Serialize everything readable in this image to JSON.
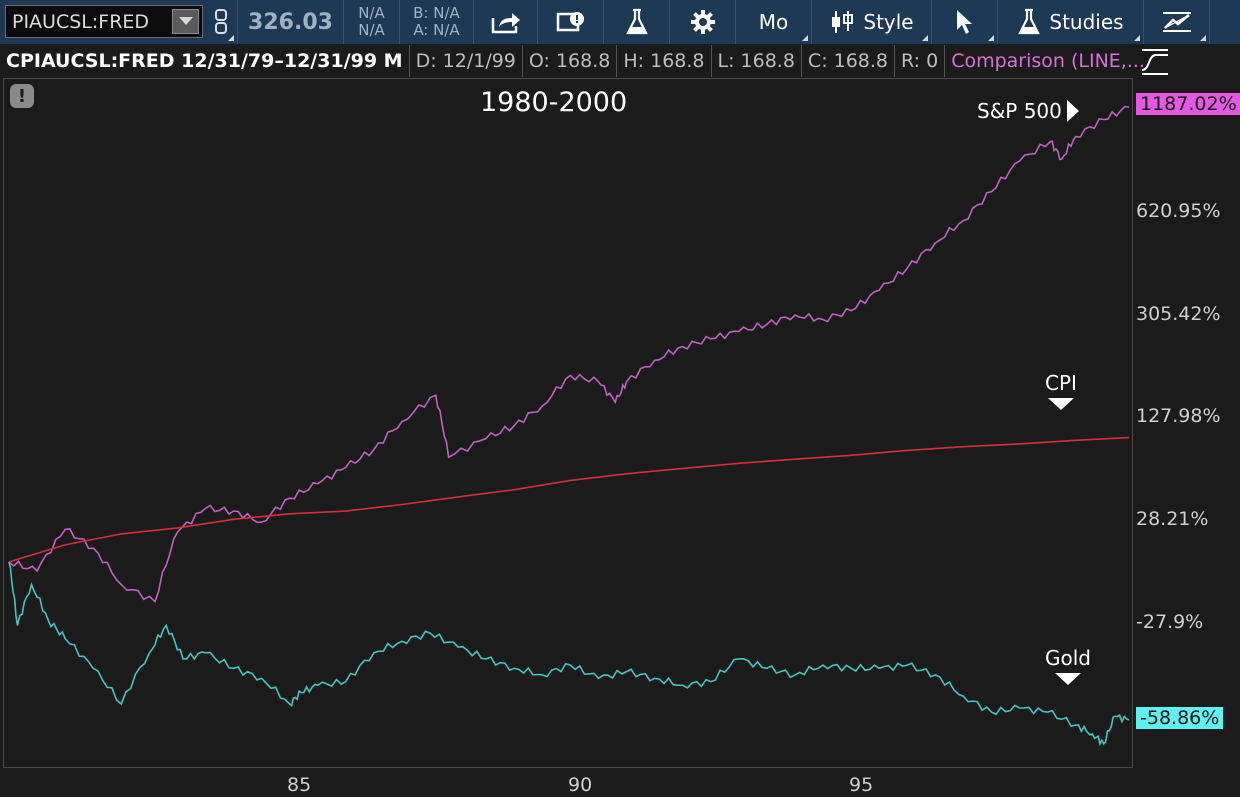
{
  "toolbar": {
    "symbol": "PIAUCSL:FRED",
    "price": "326.03",
    "na_top": "N/A",
    "na_bottom": "N/A",
    "bid": "B: N/A",
    "ask": "A: N/A",
    "interval_label": "Mo",
    "style_label": "Style",
    "studies_label": "Studies",
    "icons": [
      "link-icon",
      "share-icon",
      "message-icon",
      "flask-icon",
      "gear-icon",
      "candlestick-icon",
      "cursor-icon",
      "studies-flask-icon",
      "drawing-icon"
    ]
  },
  "header": {
    "title": "CPIAUCSL:FRED 12/31/79–12/31/99 M",
    "date": "D: 12/1/99",
    "open": "O: 168.8",
    "high": "H: 168.8",
    "low": "L: 168.8",
    "close": "C: 168.8",
    "range": "R: 0",
    "comparison": "Comparison (LINE,..."
  },
  "chart_data": {
    "type": "line",
    "title": "1980-2000",
    "x_ticks": [
      "85",
      "90",
      "95"
    ],
    "y_scale": "log",
    "y_ticks": [
      "620.95%",
      "305.42%",
      "127.98%",
      "28.21%",
      "-27.9%"
    ],
    "series": [
      {
        "name": "S&P 500",
        "color": "#c25ec4",
        "last_value_label": "1187.02%",
        "badge_color": "#e458e4",
        "x": [
          1980.0,
          1980.5,
          1981.0,
          1981.5,
          1982.0,
          1982.6,
          1983.0,
          1983.5,
          1984.0,
          1984.5,
          1985.0,
          1985.5,
          1986.0,
          1986.5,
          1987.0,
          1987.6,
          1987.83,
          1988.5,
          1989.0,
          1989.5,
          1990.0,
          1990.5,
          1990.8,
          1991.0,
          1991.5,
          1992.0,
          1992.5,
          1993.0,
          1993.5,
          1994.0,
          1994.5,
          1995.0,
          1995.5,
          1996.0,
          1996.5,
          1997.0,
          1997.5,
          1998.0,
          1998.55,
          1998.75,
          1999.0,
          1999.5,
          1999.95
        ],
        "values": [
          0,
          -5,
          20,
          8,
          -12,
          -20,
          18,
          35,
          33,
          25,
          43,
          55,
          70,
          88,
          120,
          155,
          80,
          100,
          115,
          140,
          185,
          175,
          145,
          175,
          210,
          235,
          250,
          265,
          280,
          300,
          290,
          310,
          360,
          420,
          500,
          580,
          700,
          850,
          960,
          860,
          990,
          1100,
          1187
        ]
      },
      {
        "name": "CPI",
        "color": "#d5303a",
        "x": [
          1980.0,
          1981.0,
          1982.0,
          1983.0,
          1984.0,
          1985.0,
          1986.0,
          1987.0,
          1988.0,
          1989.0,
          1990.0,
          1991.0,
          1992.0,
          1993.0,
          1994.0,
          1995.0,
          1996.0,
          1997.0,
          1998.0,
          1999.0,
          1999.95
        ],
        "values": [
          0,
          10,
          17,
          21,
          27,
          31,
          33,
          38,
          44,
          50,
          58,
          64,
          69,
          74,
          78,
          82,
          87,
          91,
          94,
          98,
          101
        ]
      },
      {
        "name": "Gold",
        "color": "#43c4c4",
        "last_value_label": "-58.86%",
        "badge_color": "#5ef3f3",
        "x": [
          1980.0,
          1980.15,
          1980.4,
          1980.7,
          1981.0,
          1981.5,
          1982.0,
          1982.5,
          1982.8,
          1983.1,
          1983.5,
          1984.0,
          1984.5,
          1985.0,
          1985.2,
          1985.5,
          1986.0,
          1986.5,
          1987.0,
          1987.5,
          1988.0,
          1988.5,
          1989.0,
          1989.5,
          1990.0,
          1990.5,
          1991.0,
          1991.5,
          1992.0,
          1992.5,
          1993.0,
          1993.5,
          1994.0,
          1994.5,
          1995.0,
          1995.5,
          1996.0,
          1996.5,
          1997.0,
          1997.5,
          1998.0,
          1998.5,
          1999.0,
          1999.3,
          1999.5,
          1999.7,
          1999.95
        ],
        "values": [
          0,
          -30,
          -12,
          -28,
          -35,
          -45,
          -55,
          -40,
          -30,
          -42,
          -40,
          -45,
          -48,
          -55,
          -52,
          -50,
          -49,
          -40,
          -36,
          -33,
          -38,
          -42,
          -45,
          -47,
          -44,
          -48,
          -46,
          -48,
          -50,
          -49,
          -42,
          -45,
          -47,
          -44,
          -45,
          -45,
          -44,
          -47,
          -53,
          -57,
          -56,
          -57,
          -60,
          -62,
          -64,
          -58,
          -58.86
        ]
      }
    ],
    "annotations": [
      {
        "text": "S&P 500",
        "pointer": "right"
      },
      {
        "text": "CPI",
        "pointer": "down"
      },
      {
        "text": "Gold",
        "pointer": "down"
      }
    ],
    "grid": false
  }
}
